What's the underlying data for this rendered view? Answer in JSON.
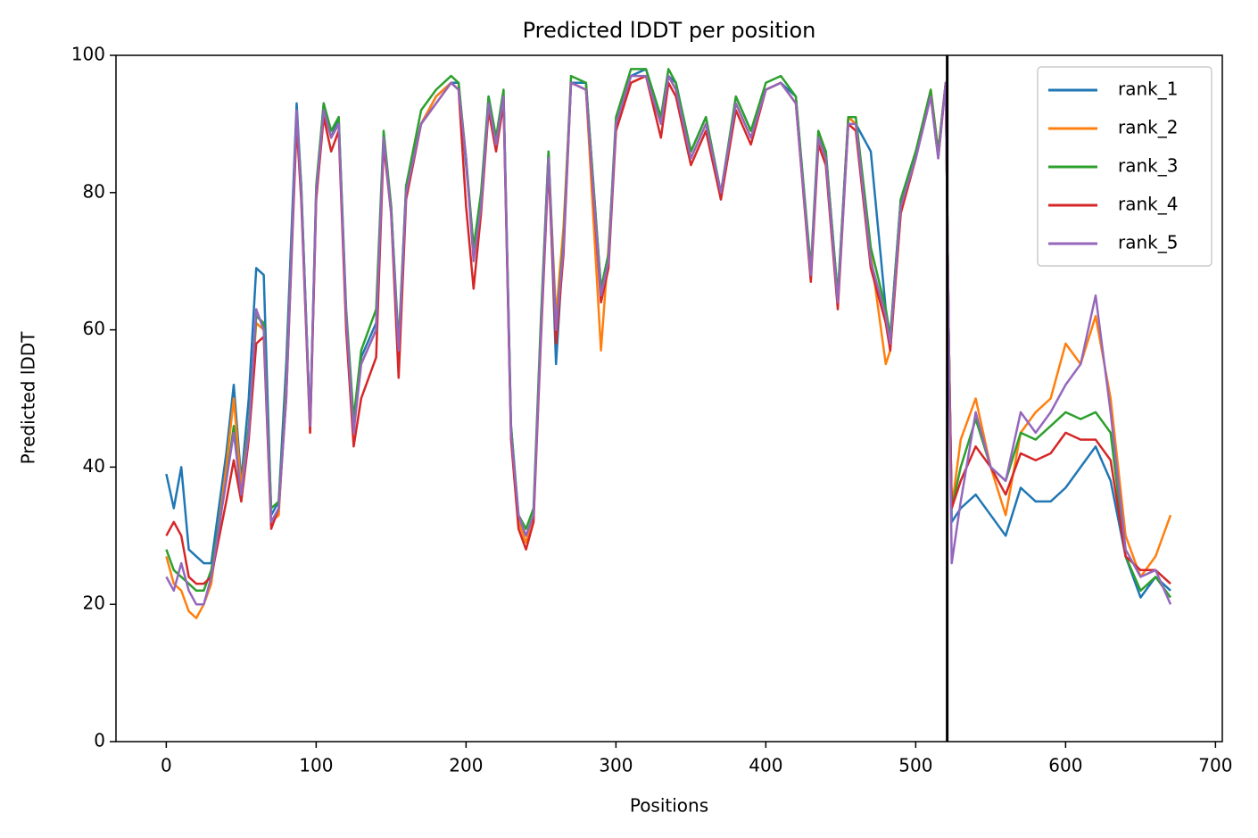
{
  "chart_data": {
    "type": "line",
    "title": "Predicted lDDT per position",
    "xlabel": "Positions",
    "ylabel": "Predicted lDDT",
    "x": [
      0,
      5,
      10,
      15,
      20,
      25,
      30,
      40,
      45,
      50,
      55,
      60,
      65,
      70,
      75,
      80,
      87,
      90,
      96,
      100,
      105,
      110,
      115,
      120,
      125,
      130,
      140,
      145,
      150,
      155,
      160,
      170,
      180,
      190,
      195,
      200,
      205,
      210,
      215,
      220,
      225,
      230,
      235,
      240,
      245,
      250,
      255,
      260,
      265,
      270,
      280,
      290,
      295,
      300,
      310,
      320,
      330,
      335,
      340,
      350,
      360,
      370,
      380,
      390,
      400,
      410,
      420,
      430,
      435,
      440,
      448,
      455,
      460,
      470,
      480,
      483,
      490,
      500,
      510,
      515,
      520,
      522,
      524,
      530,
      540,
      550,
      560,
      570,
      580,
      590,
      600,
      610,
      620,
      630,
      640,
      650,
      660,
      670
    ],
    "series": [
      {
        "name": "rank_1",
        "color": "#1f77b4",
        "values": [
          39,
          34,
          40,
          28,
          27,
          26,
          26,
          42,
          52,
          38,
          50,
          69,
          68,
          33,
          35,
          55,
          93,
          81,
          46,
          80,
          93,
          88,
          91,
          62,
          46,
          56,
          61,
          88,
          78,
          57,
          81,
          90,
          94,
          96,
          96,
          84,
          72,
          78,
          94,
          88,
          94,
          46,
          32,
          30,
          33,
          61,
          86,
          55,
          73,
          96,
          96,
          66,
          71,
          90,
          97,
          98,
          91,
          97,
          96,
          86,
          91,
          79,
          94,
          89,
          95,
          96,
          94,
          68,
          88,
          86,
          65,
          91,
          90,
          86,
          63,
          59,
          79,
          86,
          94,
          86,
          96,
          60,
          32,
          34,
          36,
          33,
          30,
          37,
          35,
          35,
          37,
          40,
          43,
          38,
          27,
          21,
          24,
          22
        ]
      },
      {
        "name": "rank_2",
        "color": "#ff7f0e",
        "values": [
          27,
          23,
          22,
          19,
          18,
          20,
          23,
          40,
          50,
          37,
          46,
          61,
          60,
          32,
          33,
          52,
          91,
          80,
          45,
          79,
          92,
          88,
          90,
          61,
          46,
          55,
          60,
          88,
          77,
          56,
          80,
          90,
          94,
          96,
          95,
          85,
          71,
          79,
          93,
          88,
          94,
          45,
          32,
          29,
          33,
          61,
          85,
          62,
          75,
          96,
          95,
          57,
          72,
          89,
          96,
          97,
          90,
          97,
          95,
          85,
          90,
          80,
          93,
          88,
          95,
          96,
          93,
          68,
          88,
          85,
          64,
          91,
          90,
          71,
          55,
          57,
          77,
          85,
          95,
          86,
          96,
          60,
          34,
          44,
          50,
          40,
          33,
          45,
          48,
          50,
          58,
          55,
          62,
          50,
          30,
          24,
          27,
          33
        ]
      },
      {
        "name": "rank_3",
        "color": "#2ca02c",
        "values": [
          28,
          25,
          24,
          23,
          22,
          22,
          25,
          38,
          46,
          35,
          46,
          62,
          61,
          34,
          35,
          51,
          92,
          81,
          46,
          81,
          93,
          89,
          91,
          63,
          47,
          57,
          63,
          89,
          78,
          58,
          81,
          92,
          95,
          97,
          96,
          85,
          72,
          80,
          94,
          88,
          95,
          46,
          33,
          31,
          34,
          62,
          86,
          60,
          73,
          97,
          96,
          66,
          71,
          91,
          98,
          98,
          91,
          98,
          96,
          86,
          91,
          80,
          94,
          89,
          96,
          97,
          94,
          69,
          89,
          86,
          65,
          91,
          91,
          72,
          63,
          59,
          79,
          86,
          95,
          86,
          96,
          60,
          34,
          40,
          47,
          40,
          38,
          45,
          44,
          46,
          48,
          47,
          48,
          45,
          27,
          22,
          24,
          21
        ]
      },
      {
        "name": "rank_4",
        "color": "#d62728",
        "values": [
          30,
          32,
          30,
          24,
          23,
          23,
          24,
          35,
          41,
          35,
          44,
          58,
          59,
          31,
          34,
          50,
          90,
          79,
          45,
          79,
          91,
          86,
          89,
          60,
          43,
          50,
          56,
          87,
          77,
          53,
          79,
          90,
          93,
          96,
          95,
          78,
          66,
          77,
          92,
          86,
          93,
          44,
          31,
          28,
          32,
          59,
          84,
          58,
          71,
          96,
          95,
          64,
          69,
          89,
          96,
          97,
          88,
          96,
          94,
          84,
          89,
          79,
          92,
          87,
          95,
          96,
          93,
          67,
          87,
          84,
          63,
          90,
          89,
          69,
          61,
          57,
          77,
          85,
          94,
          85,
          96,
          60,
          34,
          38,
          43,
          40,
          36,
          42,
          41,
          42,
          45,
          44,
          44,
          41,
          27,
          25,
          25,
          23
        ]
      },
      {
        "name": "rank_5",
        "color": "#9467bd",
        "values": [
          24,
          22,
          26,
          22,
          20,
          20,
          24,
          38,
          45,
          36,
          45,
          63,
          60,
          32,
          34,
          50,
          92,
          80,
          46,
          80,
          92,
          88,
          90,
          62,
          45,
          55,
          60,
          88,
          77,
          57,
          80,
          90,
          93,
          96,
          95,
          85,
          70,
          78,
          93,
          87,
          94,
          45,
          33,
          30,
          33,
          60,
          85,
          60,
          72,
          96,
          95,
          65,
          70,
          90,
          97,
          97,
          90,
          97,
          95,
          85,
          90,
          80,
          93,
          88,
          95,
          96,
          93,
          68,
          88,
          85,
          64,
          90,
          90,
          70,
          62,
          58,
          78,
          85,
          94,
          85,
          96,
          60,
          26,
          35,
          48,
          40,
          38,
          48,
          45,
          48,
          52,
          55,
          65,
          48,
          28,
          24,
          25,
          20
        ]
      }
    ],
    "vline": 521,
    "vline_color": "#000000",
    "xlim": [
      -33.55,
      704.55
    ],
    "xticks": [
      0,
      100,
      200,
      300,
      400,
      500,
      600,
      700
    ],
    "ylim": [
      0,
      100
    ],
    "yticks": [
      0,
      20,
      40,
      60,
      80,
      100
    ],
    "legend": "upper right"
  }
}
